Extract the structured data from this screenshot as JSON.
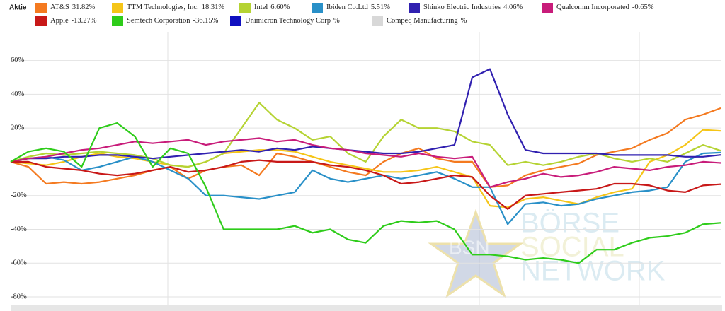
{
  "chart_data": {
    "type": "line",
    "legend_title": "Aktie",
    "watermark": {
      "logo": "BSN",
      "lines": [
        "BÖRSE",
        "SOCIAL",
        "NETWORK"
      ]
    },
    "categories": [
      null,
      null,
      null,
      null,
      null,
      null,
      null,
      null,
      null,
      null,
      null,
      null,
      null,
      null,
      null,
      null,
      null,
      null,
      null,
      null,
      null,
      null,
      null,
      null,
      null,
      null,
      null,
      null,
      null,
      null,
      null,
      null,
      null,
      null,
      null,
      null,
      null,
      null,
      null,
      null,
      null
    ],
    "ylim": [
      -85,
      77
    ],
    "yticks": [
      {
        "value": -80,
        "label": "-80%"
      },
      {
        "value": -60,
        "label": "-60%"
      },
      {
        "value": -40,
        "label": "-40%"
      },
      {
        "value": -20,
        "label": "-20%"
      },
      {
        "value": 20,
        "label": "20%"
      },
      {
        "value": 40,
        "label": "40%"
      },
      {
        "value": 60,
        "label": "60%"
      }
    ],
    "grid": true,
    "series": [
      {
        "name": "AT&S",
        "legend_value": "31.82%",
        "color": "#f47a20",
        "values": [
          0,
          -3,
          -13,
          -12,
          -13,
          -12,
          -10,
          -8,
          -5,
          -3,
          -10,
          -5,
          -3,
          -2,
          -8,
          5,
          3,
          0,
          -3,
          -6,
          -8,
          0,
          5,
          8,
          2,
          0,
          0,
          -15,
          -14,
          -8,
          -5,
          -3,
          -1,
          4,
          6,
          8,
          13,
          17,
          25,
          28,
          31.82
        ]
      },
      {
        "name": "TTM Technologies, Inc.",
        "legend_value": "18.31%",
        "color": "#f5c518",
        "values": [
          0,
          -1,
          -2,
          0,
          3,
          5,
          3,
          2,
          0,
          -2,
          -3,
          0,
          5,
          6,
          7,
          7,
          6,
          3,
          0,
          -2,
          -4,
          -6,
          -6,
          -5,
          -3,
          -6,
          -9,
          -26,
          -27,
          -22,
          -21,
          -23,
          -25,
          -21,
          -18,
          -16,
          0,
          4,
          10,
          19,
          18.31
        ]
      },
      {
        "name": "Intel",
        "legend_value": "6.60%",
        "color": "#b5d333",
        "values": [
          0,
          3,
          5,
          4,
          5,
          6,
          5,
          4,
          2,
          -2,
          -3,
          0,
          5,
          20,
          35,
          25,
          20,
          13,
          15,
          5,
          0,
          15,
          25,
          20,
          20,
          18,
          12,
          10,
          -2,
          0,
          -2,
          0,
          3,
          5,
          2,
          0,
          2,
          0,
          5,
          10,
          6.6
        ]
      },
      {
        "name": "Ibiden Co.Ltd",
        "legend_value": "5.51%",
        "color": "#2990c8",
        "values": [
          0,
          2,
          3,
          1,
          -5,
          -3,
          0,
          3,
          0,
          -5,
          -10,
          -20,
          -20,
          -21,
          -22,
          -20,
          -18,
          -5,
          -10,
          -12,
          -10,
          -8,
          -10,
          -8,
          -6,
          -10,
          -15,
          -15,
          -37,
          -25,
          -24,
          -26,
          -25,
          -22,
          -20,
          -18,
          -17,
          -15,
          0,
          5,
          5.51
        ]
      },
      {
        "name": "Shinko Electric Industries",
        "legend_value": "4.06%",
        "color": "#3020b0",
        "values": [
          0,
          2,
          2,
          3,
          3,
          4,
          4,
          3,
          2,
          3,
          4,
          5,
          6,
          7,
          6,
          8,
          7,
          9,
          8,
          7,
          6,
          5,
          5,
          6,
          8,
          10,
          50,
          55,
          28,
          7,
          5,
          5,
          5,
          5,
          4,
          4,
          4,
          4,
          3,
          3,
          4.06
        ]
      },
      {
        "name": "Qualcomm Incorporated",
        "legend_value": "-0.65%",
        "color": "#c81c7a",
        "values": [
          0,
          2,
          3,
          5,
          7,
          8,
          10,
          12,
          11,
          12,
          13,
          10,
          12,
          13,
          14,
          12,
          13,
          10,
          8,
          7,
          5,
          4,
          3,
          5,
          3,
          2,
          3,
          -15,
          -12,
          -10,
          -7,
          -9,
          -8,
          -6,
          -3,
          -4,
          -5,
          -3,
          -2,
          0,
          -0.65
        ]
      },
      {
        "name": "Apple",
        "legend_value": "-13.27%",
        "color": "#c81818",
        "values": [
          0,
          0,
          -3,
          -4,
          -5,
          -7,
          -8,
          -7,
          -5,
          -3,
          -6,
          -5,
          -3,
          0,
          1,
          0,
          0,
          0,
          -2,
          -3,
          -5,
          -8,
          -13,
          -12,
          -10,
          -8,
          -9,
          -20,
          -28,
          -20,
          -19,
          -18,
          -17,
          -16,
          -13,
          -13,
          -14,
          -17,
          -18,
          -14,
          -13.27
        ]
      },
      {
        "name": "Semtech Corporation",
        "legend_value": "-36.15%",
        "color": "#2ecc1a",
        "values": [
          0,
          6,
          8,
          6,
          -3,
          20,
          23,
          15,
          -3,
          8,
          5,
          -15,
          -40,
          -40,
          -40,
          -40,
          -38,
          -42,
          -40,
          -46,
          -48,
          -38,
          -35,
          -36,
          -35,
          -40,
          -55,
          -55,
          -56,
          -58,
          -57,
          -58,
          -60,
          -52,
          -52,
          -48,
          -45,
          -44,
          -42,
          -37,
          -36.15
        ]
      },
      {
        "name": "Unimicron Technology Corp",
        "legend_value": "%",
        "color": "#1010c0",
        "values": [
          null,
          null,
          null,
          null,
          null,
          null,
          null,
          null,
          null,
          null,
          null,
          null,
          null,
          null,
          null,
          null,
          null,
          null,
          null,
          null,
          null,
          null,
          null,
          null,
          null,
          null,
          null,
          null,
          null,
          null,
          null,
          null,
          null,
          null,
          null,
          null,
          null,
          null,
          null,
          null,
          null
        ]
      },
      {
        "name": "Compeq Manufacturing",
        "legend_value": "%",
        "color": "#d8d8d8",
        "values": [
          null,
          null,
          null,
          null,
          null,
          null,
          null,
          null,
          null,
          null,
          null,
          null,
          null,
          null,
          null,
          null,
          null,
          null,
          null,
          null,
          null,
          null,
          null,
          null,
          null,
          null,
          null,
          null,
          null,
          null,
          null,
          null,
          null,
          null,
          null,
          null,
          null,
          null,
          null,
          null,
          null
        ]
      }
    ]
  }
}
